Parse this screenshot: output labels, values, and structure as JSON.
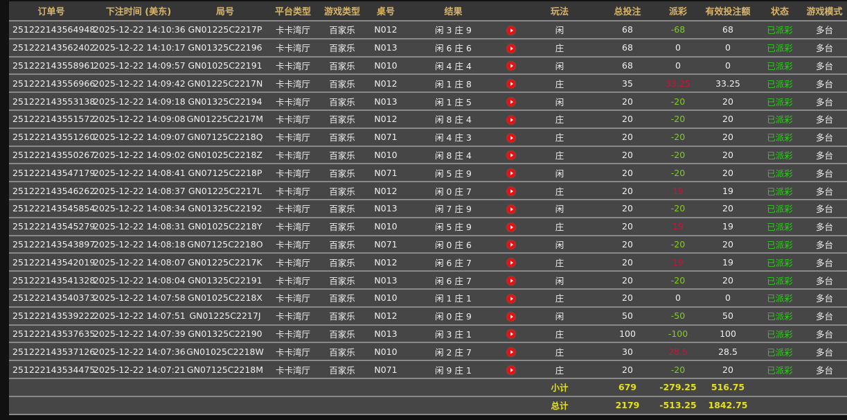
{
  "headers": [
    "订单号",
    "下注时间 (美东)",
    "局号",
    "平台类型",
    "游戏类型",
    "桌号",
    "结果",
    "",
    "玩法",
    "总投注",
    "派彩",
    "有效投注额",
    "状态",
    "游戏模式"
  ],
  "colors": {
    "header_text": "#d8b46a",
    "negative_payout": "#7fcf1c",
    "positive_payout": "#c8143c",
    "status": "#2ecc1c",
    "summary": "#e4e01a"
  },
  "rows": [
    [
      "251222143564948",
      "2025-12-22 14:10:36",
      "GN01225C2217P",
      "卡卡湾厅",
      "百家乐",
      "N012",
      "闲 3 庄 9",
      "闲",
      "68",
      "-68",
      "68",
      "已派彩",
      "多台"
    ],
    [
      "251222143562402",
      "2025-12-22 14:10:17",
      "GN01325C22196",
      "卡卡湾厅",
      "百家乐",
      "N013",
      "闲 6 庄 6",
      "庄",
      "68",
      "0",
      "0",
      "已派彩",
      "多台"
    ],
    [
      "251222143558961",
      "2025-12-22 14:09:57",
      "GN01025C22191",
      "卡卡湾厅",
      "百家乐",
      "N010",
      "闲 4 庄 4",
      "闲",
      "68",
      "0",
      "0",
      "已派彩",
      "多台"
    ],
    [
      "251222143556966",
      "2025-12-22 14:09:42",
      "GN01225C2217N",
      "卡卡湾厅",
      "百家乐",
      "N012",
      "闲 1 庄 8",
      "庄",
      "35",
      "33.25",
      "33.25",
      "已派彩",
      "多台"
    ],
    [
      "251222143553138",
      "2025-12-22 14:09:18",
      "GN01325C22194",
      "卡卡湾厅",
      "百家乐",
      "N013",
      "闲 1 庄 5",
      "闲",
      "20",
      "-20",
      "20",
      "已派彩",
      "多台"
    ],
    [
      "251222143551572",
      "2025-12-22 14:09:08",
      "GN01225C2217M",
      "卡卡湾厅",
      "百家乐",
      "N012",
      "闲 8 庄 4",
      "庄",
      "20",
      "-20",
      "20",
      "已派彩",
      "多台"
    ],
    [
      "251222143551260",
      "2025-12-22 14:09:07",
      "GN07125C2218Q",
      "卡卡湾厅",
      "百家乐",
      "N071",
      "闲 4 庄 3",
      "庄",
      "20",
      "-20",
      "20",
      "已派彩",
      "多台"
    ],
    [
      "251222143550267",
      "2025-12-22 14:09:02",
      "GN01025C2218Z",
      "卡卡湾厅",
      "百家乐",
      "N010",
      "闲 8 庄 4",
      "庄",
      "20",
      "-20",
      "20",
      "已派彩",
      "多台"
    ],
    [
      "251222143547179",
      "2025-12-22 14:08:41",
      "GN07125C2218P",
      "卡卡湾厅",
      "百家乐",
      "N071",
      "闲 5 庄 9",
      "闲",
      "20",
      "-20",
      "20",
      "已派彩",
      "多台"
    ],
    [
      "251222143546262",
      "2025-12-22 14:08:37",
      "GN01225C2217L",
      "卡卡湾厅",
      "百家乐",
      "N012",
      "闲 0 庄 7",
      "庄",
      "20",
      "19",
      "19",
      "已派彩",
      "多台"
    ],
    [
      "251222143545854",
      "2025-12-22 14:08:34",
      "GN01325C22192",
      "卡卡湾厅",
      "百家乐",
      "N013",
      "闲 7 庄 9",
      "闲",
      "20",
      "-20",
      "20",
      "已派彩",
      "多台"
    ],
    [
      "251222143545279",
      "2025-12-22 14:08:31",
      "GN01025C2218Y",
      "卡卡湾厅",
      "百家乐",
      "N010",
      "闲 5 庄 9",
      "庄",
      "20",
      "19",
      "19",
      "已派彩",
      "多台"
    ],
    [
      "251222143543897",
      "2025-12-22 14:08:18",
      "GN07125C2218O",
      "卡卡湾厅",
      "百家乐",
      "N071",
      "闲 0 庄 6",
      "闲",
      "20",
      "-20",
      "20",
      "已派彩",
      "多台"
    ],
    [
      "251222143542019",
      "2025-12-22 14:08:07",
      "GN01225C2217K",
      "卡卡湾厅",
      "百家乐",
      "N012",
      "闲 6 庄 7",
      "庄",
      "20",
      "19",
      "19",
      "已派彩",
      "多台"
    ],
    [
      "251222143541328",
      "2025-12-22 14:08:04",
      "GN01325C22191",
      "卡卡湾厅",
      "百家乐",
      "N013",
      "闲 6 庄 7",
      "闲",
      "20",
      "-20",
      "20",
      "已派彩",
      "多台"
    ],
    [
      "251222143540373",
      "2025-12-22 14:07:58",
      "GN01025C2218X",
      "卡卡湾厅",
      "百家乐",
      "N010",
      "闲 1 庄 1",
      "庄",
      "20",
      "0",
      "0",
      "已派彩",
      "多台"
    ],
    [
      "251222143539222",
      "2025-12-22 14:07:51",
      "GN01225C2217J",
      "卡卡湾厅",
      "百家乐",
      "N012",
      "闲 0 庄 9",
      "闲",
      "50",
      "-50",
      "50",
      "已派彩",
      "多台"
    ],
    [
      "251222143537635",
      "2025-12-22 14:07:39",
      "GN01325C22190",
      "卡卡湾厅",
      "百家乐",
      "N013",
      "闲 3 庄 1",
      "庄",
      "100",
      "-100",
      "100",
      "已派彩",
      "多台"
    ],
    [
      "251222143537126",
      "2025-12-22 14:07:36",
      "GN01025C2218W",
      "卡卡湾厅",
      "百家乐",
      "N010",
      "闲 2 庄 7",
      "庄",
      "30",
      "28.5",
      "28.5",
      "已派彩",
      "多台"
    ],
    [
      "251222143534475",
      "2025-12-22 14:07:21",
      "GN07125C2218M",
      "卡卡湾厅",
      "百家乐",
      "N071",
      "闲 9 庄 1",
      "庄",
      "20",
      "-20",
      "20",
      "已派彩",
      "多台"
    ]
  ],
  "icon": "play-icon",
  "subtotal": {
    "label": "小计",
    "total_bet": "679",
    "payout": "-279.25",
    "valid_bet": "516.75"
  },
  "total": {
    "label": "总计",
    "total_bet": "2179",
    "payout": "-513.25",
    "valid_bet": "1842.75"
  }
}
